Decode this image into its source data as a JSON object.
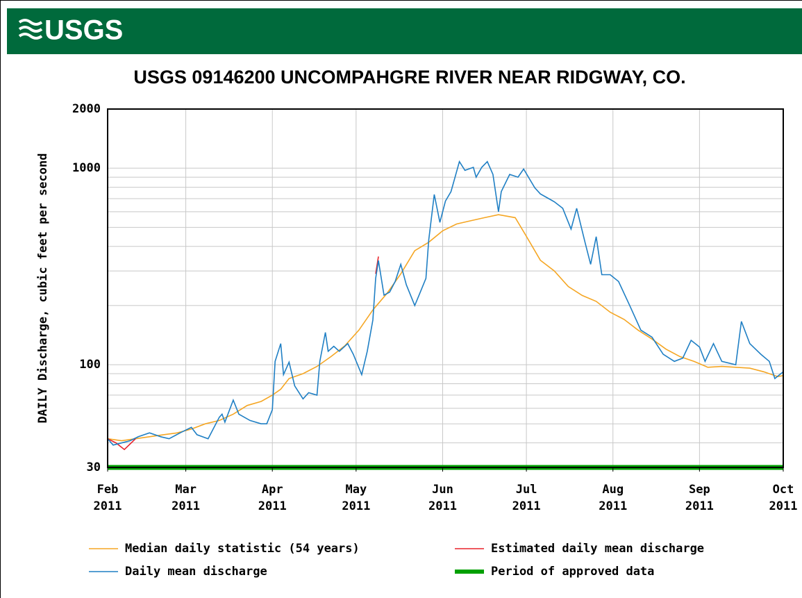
{
  "header": {
    "logo": "USGS"
  },
  "chart_data": {
    "type": "line",
    "title": "USGS 09146200 UNCOMPAHGRE RIVER NEAR RIDGWAY, CO.",
    "y_label": "DAILY Discharge, cubic feet per second",
    "log_y": true,
    "grid": true,
    "xlim": [
      0,
      242
    ],
    "xticks": [
      {
        "value": 0,
        "label": [
          "Feb",
          "2011"
        ]
      },
      {
        "value": 28,
        "label": [
          "Mar",
          "2011"
        ]
      },
      {
        "value": 59,
        "label": [
          "Apr",
          "2011"
        ]
      },
      {
        "value": 89,
        "label": [
          "May",
          "2011"
        ]
      },
      {
        "value": 120,
        "label": [
          "Jun",
          "2011"
        ]
      },
      {
        "value": 150,
        "label": [
          "Jul",
          "2011"
        ]
      },
      {
        "value": 181,
        "label": [
          "Aug",
          "2011"
        ]
      },
      {
        "value": 212,
        "label": [
          "Sep",
          "2011"
        ]
      },
      {
        "value": 242,
        "label": [
          "Oct",
          "2011"
        ]
      }
    ],
    "ylim": [
      30,
      2000
    ],
    "yticks": [
      30,
      100,
      1000,
      2000
    ],
    "yminorticks": [
      40,
      50,
      60,
      70,
      80,
      90,
      200,
      300,
      400,
      500,
      600,
      700,
      800,
      900
    ],
    "series": [
      {
        "name": "Median daily statistic (54 years)",
        "color": "#f5a623",
        "x": [
          0,
          5,
          10,
          15,
          20,
          25,
          30,
          35,
          40,
          45,
          50,
          55,
          59,
          62,
          65,
          70,
          75,
          80,
          85,
          90,
          95,
          100,
          105,
          110,
          115,
          120,
          125,
          130,
          135,
          140,
          146,
          150,
          155,
          160,
          165,
          170,
          175,
          180,
          185,
          190,
          195,
          200,
          205,
          210,
          215,
          220,
          225,
          230,
          235,
          240,
          242
        ],
        "values": [
          42,
          41,
          42,
          43,
          44,
          45,
          47,
          50,
          52,
          56,
          62,
          65,
          70,
          75,
          85,
          90,
          98,
          110,
          125,
          150,
          190,
          230,
          290,
          380,
          420,
          480,
          520,
          540,
          560,
          580,
          560,
          450,
          340,
          300,
          250,
          225,
          210,
          185,
          170,
          150,
          135,
          120,
          110,
          104,
          97,
          98,
          97,
          96,
          92,
          87,
          88
        ]
      },
      {
        "name": "Estimated daily mean discharge",
        "color": "#e8222a",
        "x": [
          0,
          3,
          6,
          10,
          50,
          96,
          97
        ],
        "values": [
          42,
          40,
          37,
          42,
          null,
          290,
          355
        ]
      },
      {
        "name": "Daily mean discharge",
        "color": "#1f7fc4",
        "x": [
          0,
          2,
          5,
          8,
          11,
          15,
          19,
          22,
          26,
          30,
          32,
          36,
          40,
          41,
          42,
          45,
          47,
          51,
          55,
          57,
          59,
          60,
          62,
          63,
          65,
          67,
          70,
          72,
          75,
          76,
          78,
          79,
          81,
          83,
          86,
          88,
          91,
          93,
          95,
          96,
          97,
          99,
          101,
          103,
          105,
          107,
          110,
          112,
          114,
          115,
          117,
          119,
          121,
          123,
          126,
          128,
          131,
          132,
          134,
          136,
          138,
          140,
          141,
          144,
          147,
          149,
          153,
          155,
          158,
          160,
          163,
          166,
          168,
          171,
          173,
          175,
          177,
          180,
          183,
          187,
          191,
          195,
          199,
          203,
          206,
          209,
          212,
          214,
          217,
          220,
          225,
          227,
          230,
          234,
          237,
          239,
          242
        ],
        "values": [
          42,
          39,
          40,
          41,
          43,
          45,
          43,
          42,
          45,
          48,
          44,
          42,
          54,
          56,
          51,
          66,
          56,
          52,
          50,
          50,
          59,
          104,
          128,
          89,
          103,
          78,
          67,
          72,
          70,
          104,
          146,
          117,
          124,
          117,
          128,
          113,
          89,
          117,
          169,
          275,
          339,
          226,
          234,
          265,
          324,
          255,
          200,
          234,
          275,
          430,
          735,
          530,
          680,
          760,
          1080,
          975,
          1010,
          900,
          1010,
          1080,
          930,
          600,
          760,
          930,
          900,
          990,
          795,
          740,
          700,
          675,
          625,
          490,
          625,
          420,
          324,
          448,
          287,
          287,
          265,
          200,
          150,
          138,
          113,
          104,
          108,
          133,
          123,
          104,
          128,
          104,
          100,
          166,
          128,
          113,
          104,
          85,
          92
        ]
      },
      {
        "name": "Period of approved data",
        "color": "#00a000",
        "x": [
          0,
          242
        ],
        "values": [
          30,
          30
        ]
      }
    ]
  }
}
